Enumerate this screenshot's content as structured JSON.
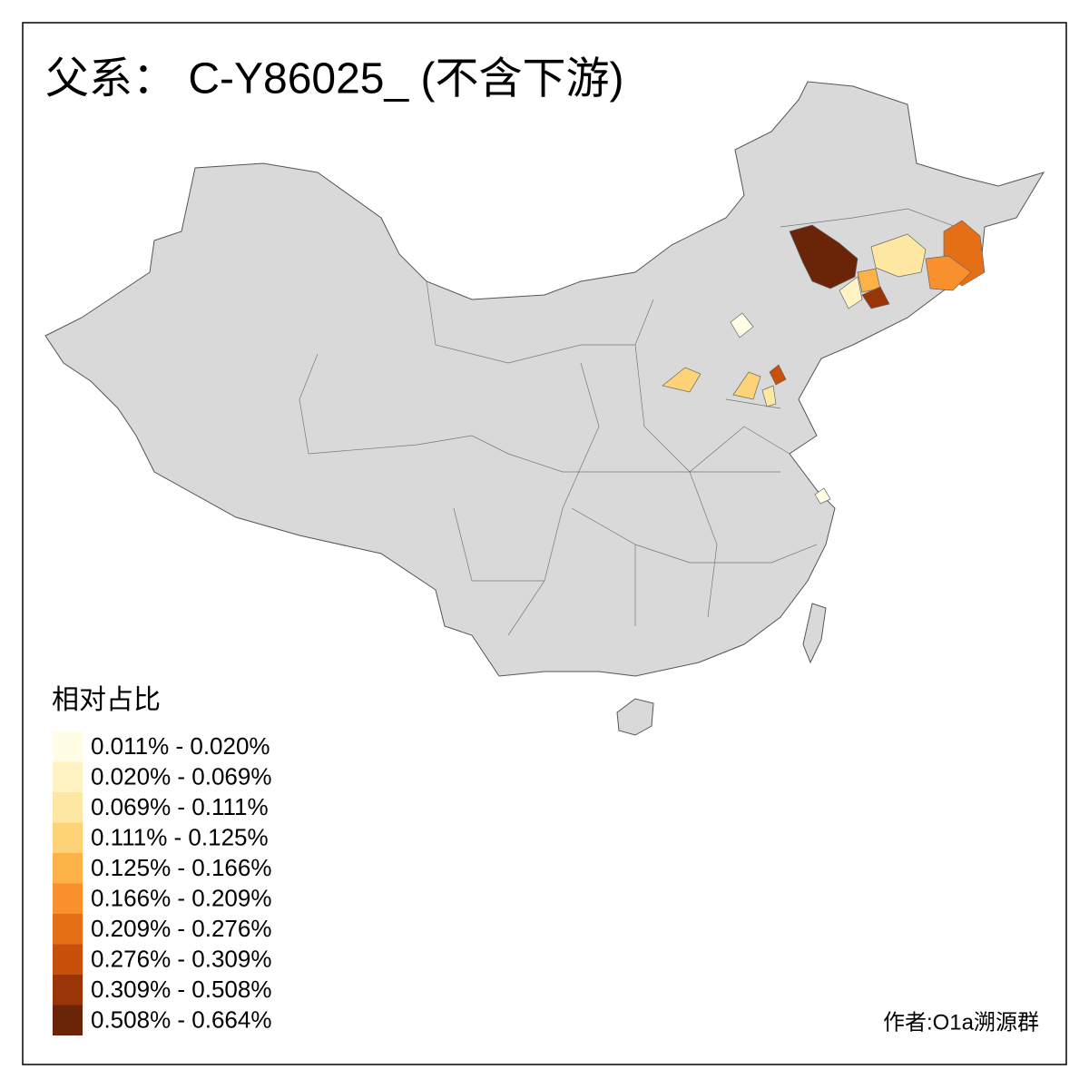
{
  "title": "父系： C-Y86025_ (不含下游)",
  "legend": {
    "title": "相对占比",
    "items": [
      {
        "label": "0.011% - 0.020%",
        "color": "#fffde5"
      },
      {
        "label": "0.020% - 0.069%",
        "color": "#fff3c4"
      },
      {
        "label": "0.069% - 0.111%",
        "color": "#fee6a3"
      },
      {
        "label": "0.111% - 0.125%",
        "color": "#fed277"
      },
      {
        "label": "0.125% - 0.166%",
        "color": "#fdb248"
      },
      {
        "label": "0.166% - 0.209%",
        "color": "#f8912d"
      },
      {
        "label": "0.209% - 0.276%",
        "color": "#e56f17"
      },
      {
        "label": "0.276% - 0.309%",
        "color": "#c8500b"
      },
      {
        "label": "0.309% - 0.508%",
        "color": "#993507"
      },
      {
        "label": "0.508% - 0.664%",
        "color": "#6a2407"
      }
    ]
  },
  "credit": "作者:O1a溯源群"
}
